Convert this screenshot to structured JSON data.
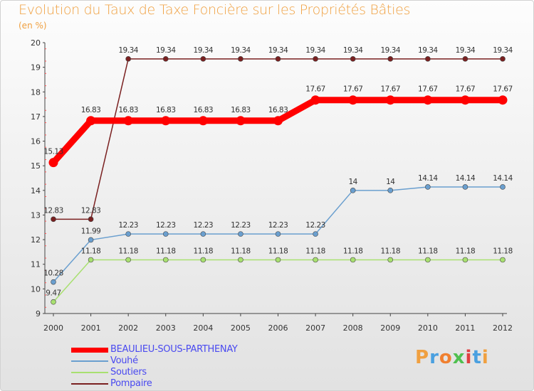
{
  "chart_data": {
    "type": "line",
    "title": "Evolution du Taux de Taxe Foncière sur les Propriétés Bâties",
    "ylabel": "(en %)",
    "xlabel": "",
    "ylim": [
      9,
      20
    ],
    "yticks": [
      9,
      10,
      11,
      12,
      13,
      14,
      15,
      16,
      17,
      18,
      19,
      20
    ],
    "categories": [
      "2000",
      "2001",
      "2002",
      "2003",
      "2004",
      "2005",
      "2006",
      "2007",
      "2008",
      "2009",
      "2010",
      "2011",
      "2012"
    ],
    "series": [
      {
        "name": "BEAULIEU-SOUS-PARTHENAY",
        "color": "#ff0000",
        "values": [
          15.13,
          16.83,
          16.83,
          16.83,
          16.83,
          16.83,
          16.83,
          17.67,
          17.67,
          17.67,
          17.67,
          17.67,
          17.67
        ],
        "labels": [
          "15.13",
          "16.83",
          "16.83",
          "16.83",
          "16.83",
          "16.83",
          "16.83",
          "17.67",
          "17.67",
          "17.67",
          "17.67",
          "17.67",
          "17.67"
        ]
      },
      {
        "name": "Vouhé",
        "color": "#6a9fcf",
        "values": [
          10.28,
          11.99,
          12.23,
          12.23,
          12.23,
          12.23,
          12.23,
          12.23,
          14,
          14,
          14.14,
          14.14,
          14.14
        ],
        "labels": [
          "10.28",
          "11.99",
          "12.23",
          "12.23",
          "12.23",
          "12.23",
          "12.23",
          "12.23",
          "14",
          "14",
          "14.14",
          "14.14",
          "14.14"
        ]
      },
      {
        "name": "Soutiers",
        "color": "#a8e070",
        "values": [
          9.47,
          11.18,
          11.18,
          11.18,
          11.18,
          11.18,
          11.18,
          11.18,
          11.18,
          11.18,
          11.18,
          11.18,
          11.18
        ],
        "labels": [
          "9.47",
          "11.18",
          "11.18",
          "11.18",
          "11.18",
          "11.18",
          "11.18",
          "11.18",
          "11.18",
          "11.18",
          "11.18",
          "11.18",
          "11.18"
        ]
      },
      {
        "name": "Pompaire",
        "color": "#7a2020",
        "values": [
          12.83,
          12.83,
          19.34,
          19.34,
          19.34,
          19.34,
          19.34,
          19.34,
          19.34,
          19.34,
          19.34,
          19.34,
          19.34
        ],
        "labels": [
          "12.83",
          "12.83",
          "19.34",
          "19.34",
          "19.34",
          "19.34",
          "19.34",
          "19.34",
          "19.34",
          "19.34",
          "19.34",
          "19.34",
          "19.34"
        ]
      }
    ]
  },
  "branding": {
    "logo_text": "Proxiti",
    "logo_colors": [
      "#f0a040",
      "#4aa0e0",
      "#f08030",
      "#50c050",
      "#e04040",
      "#4aa0e0",
      "#f0a040"
    ]
  }
}
